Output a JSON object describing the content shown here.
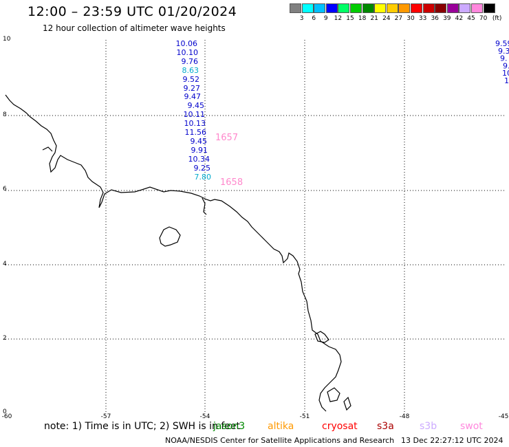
{
  "title": "12:00 – 23:59 UTC 01/20/2024",
  "subtitle": "12 hour collection of altimeter wave heights",
  "legend": {
    "unit": "(ft)",
    "colors": [
      "#808080",
      "#00ffff",
      "#00bfff",
      "#0000ff",
      "#00ff66",
      "#00cc00",
      "#008800",
      "#ffff00",
      "#ffcc00",
      "#ff9900",
      "#ff0000",
      "#cc0000",
      "#880000",
      "#990099",
      "#ccaaff",
      "#ff88dd",
      "#000000"
    ],
    "labels": [
      "3",
      "6",
      "9",
      "12",
      "15",
      "18",
      "21",
      "24",
      "27",
      "30",
      "33",
      "36",
      "39",
      "42",
      "45",
      "70"
    ]
  },
  "axes": {
    "y_ticks": [
      "10",
      "8",
      "6",
      "4",
      "2",
      "0"
    ],
    "x_ticks": [
      "-60",
      "-57",
      "-54",
      "-51",
      "-48",
      "-45"
    ]
  },
  "observations": [
    {
      "value": "10.06",
      "color": "#0000cc"
    },
    {
      "value": "10.10",
      "color": "#0000cc"
    },
    {
      "value": "9.76",
      "color": "#0000cc"
    },
    {
      "value": "8.63",
      "color": "#00aacc"
    },
    {
      "value": "9.52",
      "color": "#0000cc"
    },
    {
      "value": "9.27",
      "color": "#0000cc"
    },
    {
      "value": "9.47",
      "color": "#0000cc"
    },
    {
      "value": "9.45",
      "color": "#0000cc"
    },
    {
      "value": "10.11",
      "color": "#0000cc"
    },
    {
      "value": "10.13",
      "color": "#0000cc"
    },
    {
      "value": "11.56",
      "color": "#0000cc"
    },
    {
      "value": "9.45",
      "color": "#0000cc"
    },
    {
      "value": "9.91",
      "color": "#0000cc"
    },
    {
      "value": "10.34",
      "color": "#0000cc"
    },
    {
      "value": "9.25",
      "color": "#0000cc"
    },
    {
      "value": "7.80",
      "color": "#00aacc"
    }
  ],
  "edge_observations": [
    {
      "value": "9.59",
      "color": "#0000cc"
    },
    {
      "value": "9.3",
      "color": "#0000cc"
    },
    {
      "value": "9.",
      "color": "#0000cc"
    },
    {
      "value": "9.",
      "color": "#0000cc"
    },
    {
      "value": "10",
      "color": "#0000cc"
    },
    {
      "value": "1",
      "color": "#0000cc"
    }
  ],
  "time_tags": [
    {
      "value": "1657",
      "color": "#ff88cc"
    },
    {
      "value": "1658",
      "color": "#ff88cc"
    }
  ],
  "footer": {
    "note": "note: 1) Time is in UTC; 2) SWH is in feet",
    "satellites": [
      {
        "name": "jason3",
        "color": "#008800"
      },
      {
        "name": "altika",
        "color": "#ff9900"
      },
      {
        "name": "cryosat",
        "color": "#ff0000"
      },
      {
        "name": "s3a",
        "color": "#aa0000"
      },
      {
        "name": "s3b",
        "color": "#ccaaff"
      },
      {
        "name": "swot",
        "color": "#ff88dd"
      }
    ],
    "credit": "NOAA/NESDIS Center for Satellite Applications and Research",
    "timestamp": "13 Dec 22:27:12 UTC 2024"
  }
}
